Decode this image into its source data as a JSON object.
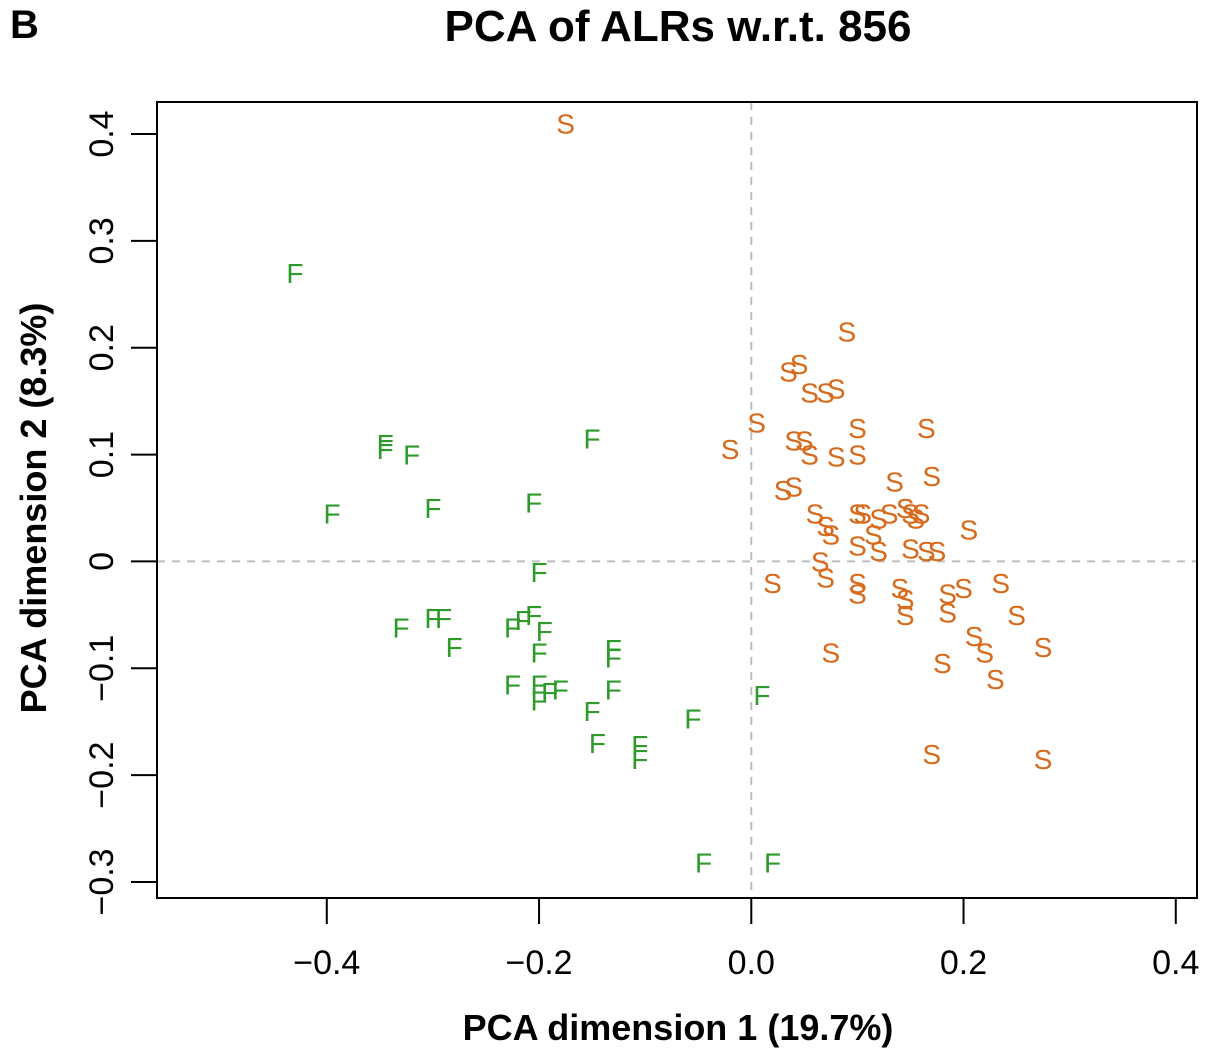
{
  "chart_data": {
    "type": "scatter",
    "panel_label": "B",
    "title": "PCA of ALRs w.r.t. 856",
    "xlabel": "PCA dimension 1 (19.7%)",
    "ylabel": "PCA dimension 2 (8.3%)",
    "xlim": [
      -0.56,
      0.42
    ],
    "ylim": [
      -0.315,
      0.43
    ],
    "xticks": [
      -0.4,
      -0.2,
      0.0,
      0.2,
      0.4
    ],
    "xtick_labels": [
      "−0.4",
      "−0.2",
      "0.0",
      "0.2",
      "0.4"
    ],
    "yticks": [
      -0.3,
      -0.2,
      -0.1,
      0,
      0.1,
      0.2,
      0.3,
      0.4
    ],
    "ytick_labels": [
      "−0.3",
      "−0.2",
      "−0.1",
      "0",
      "0.1",
      "0.2",
      "0.3",
      "0.4"
    ],
    "reference_lines": {
      "x": 0,
      "y": 0,
      "style": "dashed",
      "color": "#bdbdbd"
    },
    "grid": false,
    "legend": "none",
    "series": [
      {
        "marker": "F",
        "color": "#2e9a2a",
        "points": [
          [
            -0.43,
            0.27
          ],
          [
            -0.345,
            0.11
          ],
          [
            -0.345,
            0.105
          ],
          [
            -0.32,
            0.1
          ],
          [
            -0.395,
            0.045
          ],
          [
            -0.3,
            0.05
          ],
          [
            -0.205,
            0.055
          ],
          [
            -0.15,
            0.115
          ],
          [
            -0.2,
            -0.01
          ],
          [
            -0.33,
            -0.062
          ],
          [
            -0.3,
            -0.053
          ],
          [
            -0.29,
            -0.053
          ],
          [
            -0.28,
            -0.08
          ],
          [
            -0.225,
            -0.062
          ],
          [
            -0.215,
            -0.055
          ],
          [
            -0.205,
            -0.05
          ],
          [
            -0.195,
            -0.065
          ],
          [
            -0.2,
            -0.085
          ],
          [
            -0.13,
            -0.082
          ],
          [
            -0.13,
            -0.09
          ],
          [
            -0.225,
            -0.115
          ],
          [
            -0.2,
            -0.115
          ],
          [
            -0.2,
            -0.13
          ],
          [
            -0.19,
            -0.122
          ],
          [
            -0.18,
            -0.12
          ],
          [
            -0.13,
            -0.12
          ],
          [
            -0.15,
            -0.14
          ],
          [
            -0.145,
            -0.17
          ],
          [
            -0.105,
            -0.172
          ],
          [
            -0.105,
            -0.185
          ],
          [
            -0.055,
            -0.147
          ],
          [
            0.01,
            -0.125
          ],
          [
            -0.045,
            -0.282
          ],
          [
            0.02,
            -0.282
          ]
        ]
      },
      {
        "marker": "S",
        "color": "#d76a1c",
        "points": [
          [
            -0.175,
            0.41
          ],
          [
            0.09,
            0.215
          ],
          [
            0.035,
            0.178
          ],
          [
            0.045,
            0.185
          ],
          [
            0.055,
            0.158
          ],
          [
            0.07,
            0.158
          ],
          [
            0.08,
            0.162
          ],
          [
            0.005,
            0.13
          ],
          [
            -0.02,
            0.105
          ],
          [
            0.04,
            0.113
          ],
          [
            0.05,
            0.113
          ],
          [
            0.055,
            0.1
          ],
          [
            0.08,
            0.098
          ],
          [
            0.1,
            0.1
          ],
          [
            0.1,
            0.125
          ],
          [
            0.165,
            0.125
          ],
          [
            0.03,
            0.067
          ],
          [
            0.04,
            0.07
          ],
          [
            0.06,
            0.045
          ],
          [
            0.135,
            0.075
          ],
          [
            0.17,
            0.08
          ],
          [
            0.075,
            0.025
          ],
          [
            0.07,
            0.033
          ],
          [
            0.1,
            0.045
          ],
          [
            0.105,
            0.045
          ],
          [
            0.12,
            0.04
          ],
          [
            0.13,
            0.045
          ],
          [
            0.145,
            0.05
          ],
          [
            0.15,
            0.045
          ],
          [
            0.155,
            0.04
          ],
          [
            0.16,
            0.045
          ],
          [
            0.1,
            0.015
          ],
          [
            0.115,
            0.025
          ],
          [
            0.12,
            0.01
          ],
          [
            0.15,
            0.012
          ],
          [
            0.165,
            0.01
          ],
          [
            0.175,
            0.01
          ],
          [
            0.205,
            0.03
          ],
          [
            0.065,
            0.0
          ],
          [
            0.07,
            -0.015
          ],
          [
            0.02,
            -0.02
          ],
          [
            0.1,
            -0.02
          ],
          [
            0.1,
            -0.03
          ],
          [
            0.14,
            -0.025
          ],
          [
            0.145,
            -0.035
          ],
          [
            0.185,
            -0.03
          ],
          [
            0.2,
            -0.025
          ],
          [
            0.235,
            -0.02
          ],
          [
            0.145,
            -0.05
          ],
          [
            0.185,
            -0.048
          ],
          [
            0.25,
            -0.05
          ],
          [
            0.21,
            -0.07
          ],
          [
            0.22,
            -0.085
          ],
          [
            0.23,
            -0.11
          ],
          [
            0.275,
            -0.08
          ],
          [
            0.075,
            -0.085
          ],
          [
            0.18,
            -0.095
          ],
          [
            0.17,
            -0.18
          ],
          [
            0.275,
            -0.185
          ]
        ]
      }
    ]
  }
}
